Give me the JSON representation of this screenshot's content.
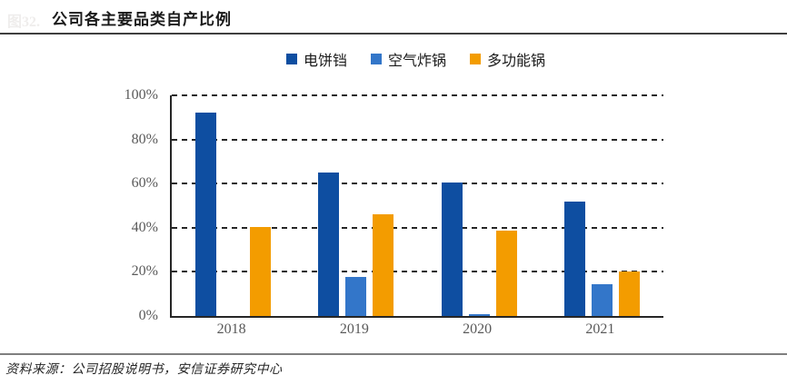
{
  "watermark": "图32.",
  "title": "公司各主要品类自产比例",
  "source": "资料来源：公司招股说明书，安信证券研究中心",
  "colors": {
    "navy": "#0E4EA1",
    "blue": "#3376C9",
    "orange": "#F39C00",
    "axis": "#262626",
    "tick_label": "#595959",
    "title_rule": "#3f3f3f",
    "bottom_rule": "#7f7f7f"
  },
  "chart_data": {
    "type": "bar",
    "title": "公司各主要品类自产比例",
    "categories": [
      "2018",
      "2019",
      "2020",
      "2021"
    ],
    "series": [
      {
        "name": "电饼铛",
        "color": "#0E4EA1",
        "values": [
          92,
          65,
          60.5,
          52
        ]
      },
      {
        "name": "空气炸锅",
        "color": "#3376C9",
        "values": [
          0,
          17.5,
          1,
          14.5
        ]
      },
      {
        "name": "多功能锅",
        "color": "#F39C00",
        "values": [
          40.5,
          46,
          38.5,
          20
        ]
      }
    ],
    "ylim": [
      0,
      100
    ],
    "yticks": [
      0,
      20,
      40,
      60,
      80,
      100
    ],
    "ytick_labels": [
      "0%",
      "20%",
      "40%",
      "60%",
      "80%",
      "100%"
    ],
    "grid": "horizontal-dashed",
    "legend_position": "top-center",
    "xlabel": "",
    "ylabel": ""
  }
}
